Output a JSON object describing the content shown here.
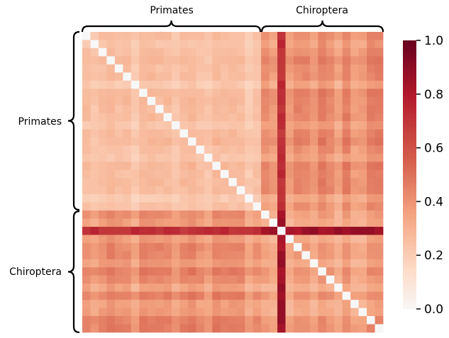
{
  "chart_data": {
    "type": "heatmap",
    "title": "",
    "groups": [
      "Primates",
      "Chiroptera"
    ],
    "matrix_size": 37,
    "group_sizes": [
      22,
      15
    ],
    "diagonal_value": 0.0,
    "typical_within_primates": 0.22,
    "typical_within_chiroptera": 0.3,
    "typical_between_groups": 0.35,
    "highlight_rows": [
      {
        "index": 24,
        "group": "Chiroptera",
        "value": 0.85
      }
    ],
    "highlight_cols": [
      {
        "index": 24,
        "group": "Chiroptera",
        "value": 0.85
      }
    ],
    "colorbar": {
      "min": 0.0,
      "max": 1.0,
      "ticks": [
        "0.0",
        "0.2",
        "0.4",
        "0.6",
        "0.8",
        "1.0"
      ],
      "colormap": "Reds"
    },
    "row_labels": [
      {
        "label": "Primates",
        "start": 0,
        "end": 22
      },
      {
        "label": "Chiroptera",
        "start": 22,
        "end": 37
      }
    ],
    "col_labels": [
      {
        "label": "Primates",
        "start": 0,
        "end": 22
      },
      {
        "label": "Chiroptera",
        "start": 22,
        "end": 37
      }
    ],
    "grid": false,
    "legend": "right colorbar"
  }
}
